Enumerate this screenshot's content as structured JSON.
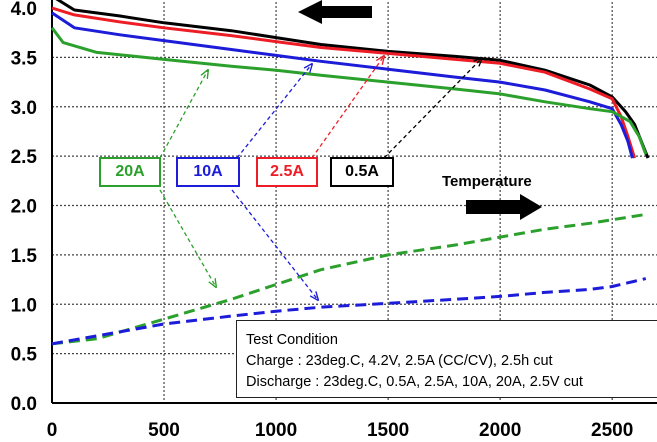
{
  "chart_data": {
    "type": "line",
    "title": "",
    "xlabel": "",
    "ylabel": "",
    "xlim": [
      0,
      2700
    ],
    "ylim": [
      0,
      4.0
    ],
    "x_ticks": [
      "0",
      "500",
      "1000",
      "1500",
      "2000",
      "2500"
    ],
    "y_ticks": [
      "0.0",
      "0.5",
      "1.0",
      "1.5",
      "2.0",
      "2.5",
      "3.0",
      "3.5",
      "4.0"
    ],
    "grid": true,
    "series": [
      {
        "name": "0.5A",
        "color": "#000000",
        "style": "solid",
        "points": [
          [
            0,
            4.12
          ],
          [
            100,
            3.98
          ],
          [
            300,
            3.92
          ],
          [
            500,
            3.85
          ],
          [
            800,
            3.77
          ],
          [
            1000,
            3.7
          ],
          [
            1200,
            3.63
          ],
          [
            1500,
            3.56
          ],
          [
            1800,
            3.51
          ],
          [
            2000,
            3.47
          ],
          [
            2200,
            3.37
          ],
          [
            2400,
            3.22
          ],
          [
            2500,
            3.1
          ],
          [
            2560,
            2.95
          ],
          [
            2600,
            2.82
          ],
          [
            2630,
            2.65
          ],
          [
            2660,
            2.48
          ]
        ]
      },
      {
        "name": "2.5A",
        "color": "#ee1c25",
        "style": "solid",
        "points": [
          [
            0,
            4.0
          ],
          [
            100,
            3.93
          ],
          [
            300,
            3.86
          ],
          [
            500,
            3.8
          ],
          [
            800,
            3.72
          ],
          [
            1000,
            3.66
          ],
          [
            1200,
            3.6
          ],
          [
            1500,
            3.54
          ],
          [
            1800,
            3.48
          ],
          [
            2000,
            3.44
          ],
          [
            2200,
            3.35
          ],
          [
            2400,
            3.18
          ],
          [
            2500,
            3.08
          ],
          [
            2540,
            2.9
          ],
          [
            2570,
            2.7
          ],
          [
            2600,
            2.48
          ]
        ]
      },
      {
        "name": "10A",
        "color": "#1c1cd9",
        "style": "solid",
        "points": [
          [
            0,
            3.95
          ],
          [
            100,
            3.8
          ],
          [
            300,
            3.73
          ],
          [
            500,
            3.67
          ],
          [
            800,
            3.58
          ],
          [
            1000,
            3.52
          ],
          [
            1200,
            3.46
          ],
          [
            1500,
            3.38
          ],
          [
            1800,
            3.3
          ],
          [
            2000,
            3.25
          ],
          [
            2200,
            3.17
          ],
          [
            2400,
            3.05
          ],
          [
            2500,
            2.98
          ],
          [
            2540,
            2.82
          ],
          [
            2570,
            2.65
          ],
          [
            2590,
            2.48
          ]
        ]
      },
      {
        "name": "20A",
        "color": "#2ca02c",
        "style": "solid",
        "points": [
          [
            0,
            3.8
          ],
          [
            50,
            3.65
          ],
          [
            200,
            3.55
          ],
          [
            500,
            3.48
          ],
          [
            800,
            3.41
          ],
          [
            1000,
            3.37
          ],
          [
            1200,
            3.32
          ],
          [
            1500,
            3.25
          ],
          [
            1800,
            3.18
          ],
          [
            2000,
            3.13
          ],
          [
            2200,
            3.05
          ],
          [
            2400,
            2.98
          ],
          [
            2500,
            2.95
          ],
          [
            2580,
            2.85
          ],
          [
            2620,
            2.7
          ],
          [
            2650,
            2.52
          ]
        ]
      },
      {
        "name": "20A Temperature",
        "color": "#2ca02c",
        "style": "dashed",
        "points": [
          [
            0,
            0.6
          ],
          [
            200,
            0.65
          ],
          [
            500,
            0.85
          ],
          [
            800,
            1.05
          ],
          [
            1000,
            1.2
          ],
          [
            1200,
            1.35
          ],
          [
            1500,
            1.5
          ],
          [
            1800,
            1.6
          ],
          [
            2000,
            1.68
          ],
          [
            2200,
            1.76
          ],
          [
            2400,
            1.82
          ],
          [
            2650,
            1.91
          ]
        ]
      },
      {
        "name": "10A Temperature",
        "color": "#1c1cd9",
        "style": "dashed",
        "points": [
          [
            0,
            0.6
          ],
          [
            200,
            0.68
          ],
          [
            500,
            0.8
          ],
          [
            800,
            0.88
          ],
          [
            1000,
            0.93
          ],
          [
            1200,
            0.97
          ],
          [
            1500,
            1.01
          ],
          [
            1800,
            1.05
          ],
          [
            2000,
            1.08
          ],
          [
            2200,
            1.12
          ],
          [
            2400,
            1.15
          ],
          [
            2500,
            1.18
          ],
          [
            2650,
            1.26
          ]
        ]
      }
    ],
    "legend": [
      "20A",
      "10A",
      "2.5A",
      "0.5A"
    ],
    "legend_colors": [
      "#2ca02c",
      "#1c1cd9",
      "#ee1c25",
      "#000000"
    ],
    "legend_placement": "center-left",
    "annotations": {
      "temperature_label": "Temperature",
      "test_condition_title": "Test Condition",
      "test_condition_charge": "Charge : 23deg.C, 4.2V, 2.5A (CC/CV), 2.5h cut",
      "test_condition_discharge": "Discharge : 23deg.C, 0.5A, 2.5A, 10A, 20A, 2.5V cut"
    }
  }
}
